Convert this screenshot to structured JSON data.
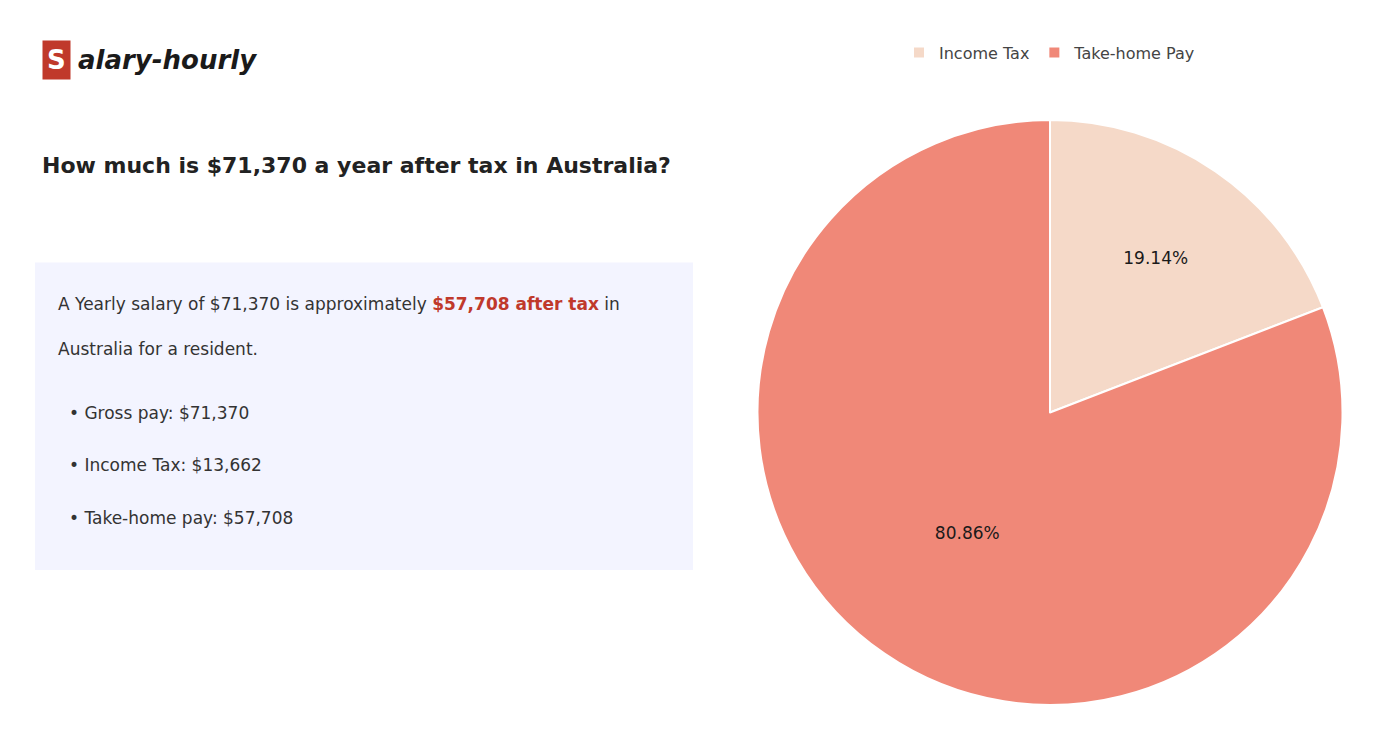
{
  "chart_data": {
    "type": "pie",
    "title": "How much is $71,370 a year after tax in Australia?",
    "categories": [
      "Income Tax",
      "Take-home Pay"
    ],
    "values": [
      19.14,
      80.86
    ],
    "value_labels": [
      "19.14%",
      "80.86%"
    ],
    "colors": [
      "#f5d9c8",
      "#f08878"
    ],
    "data_labels": true,
    "legend": "top",
    "annotations": [
      [
        {
          "text": "S",
          "color": "#c0392b"
        },
        {
          "text": "alary-hourly"
        }
      ],
      [
        {
          "text": "A Yearly salary of $71,370 is approximately "
        },
        {
          "text": "$57,708 after tax",
          "color": "#c0392b"
        },
        {
          "text": " in"
        }
      ],
      [
        {
          "text": "Australia for a resident."
        }
      ],
      [
        {
          "text": "• Gross pay: $71,370"
        }
      ],
      [
        {
          "text": "• Income Tax: $13,662"
        }
      ],
      [
        {
          "text": "• Take-home pay: $57,708"
        }
      ]
    ]
  }
}
